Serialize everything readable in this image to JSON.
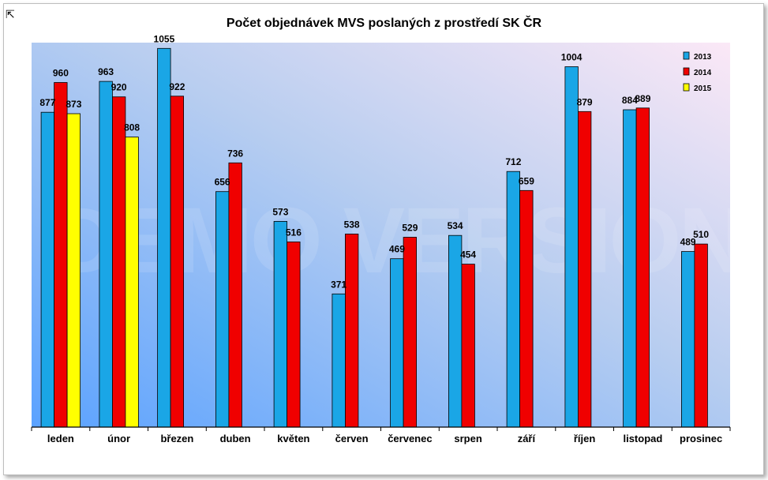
{
  "chart_data": {
    "type": "bar",
    "title": "Počet objednávek MVS poslaných z prostředí SK ČR",
    "xlabel": "",
    "ylabel": "",
    "ylim": [
      0,
      1060
    ],
    "grid": false,
    "legend_position": "top-right",
    "watermark": "DEMO VERSION",
    "categories": [
      "leden",
      "únor",
      "březen",
      "duben",
      "květen",
      "červen",
      "červenec",
      "srpen",
      "září",
      "říjen",
      "listopad",
      "prosinec"
    ],
    "series": [
      {
        "name": "2013",
        "color": "#1aa6e6",
        "values": [
          877,
          963,
          1055,
          656,
          573,
          371,
          469,
          534,
          712,
          1004,
          884,
          489
        ]
      },
      {
        "name": "2014",
        "color": "#f00000",
        "values": [
          960,
          920,
          922,
          736,
          516,
          538,
          529,
          454,
          659,
          879,
          889,
          510
        ]
      },
      {
        "name": "2015",
        "color": "#ffff00",
        "values": [
          873,
          808,
          null,
          null,
          null,
          null,
          null,
          null,
          null,
          null,
          null,
          null
        ]
      }
    ]
  }
}
